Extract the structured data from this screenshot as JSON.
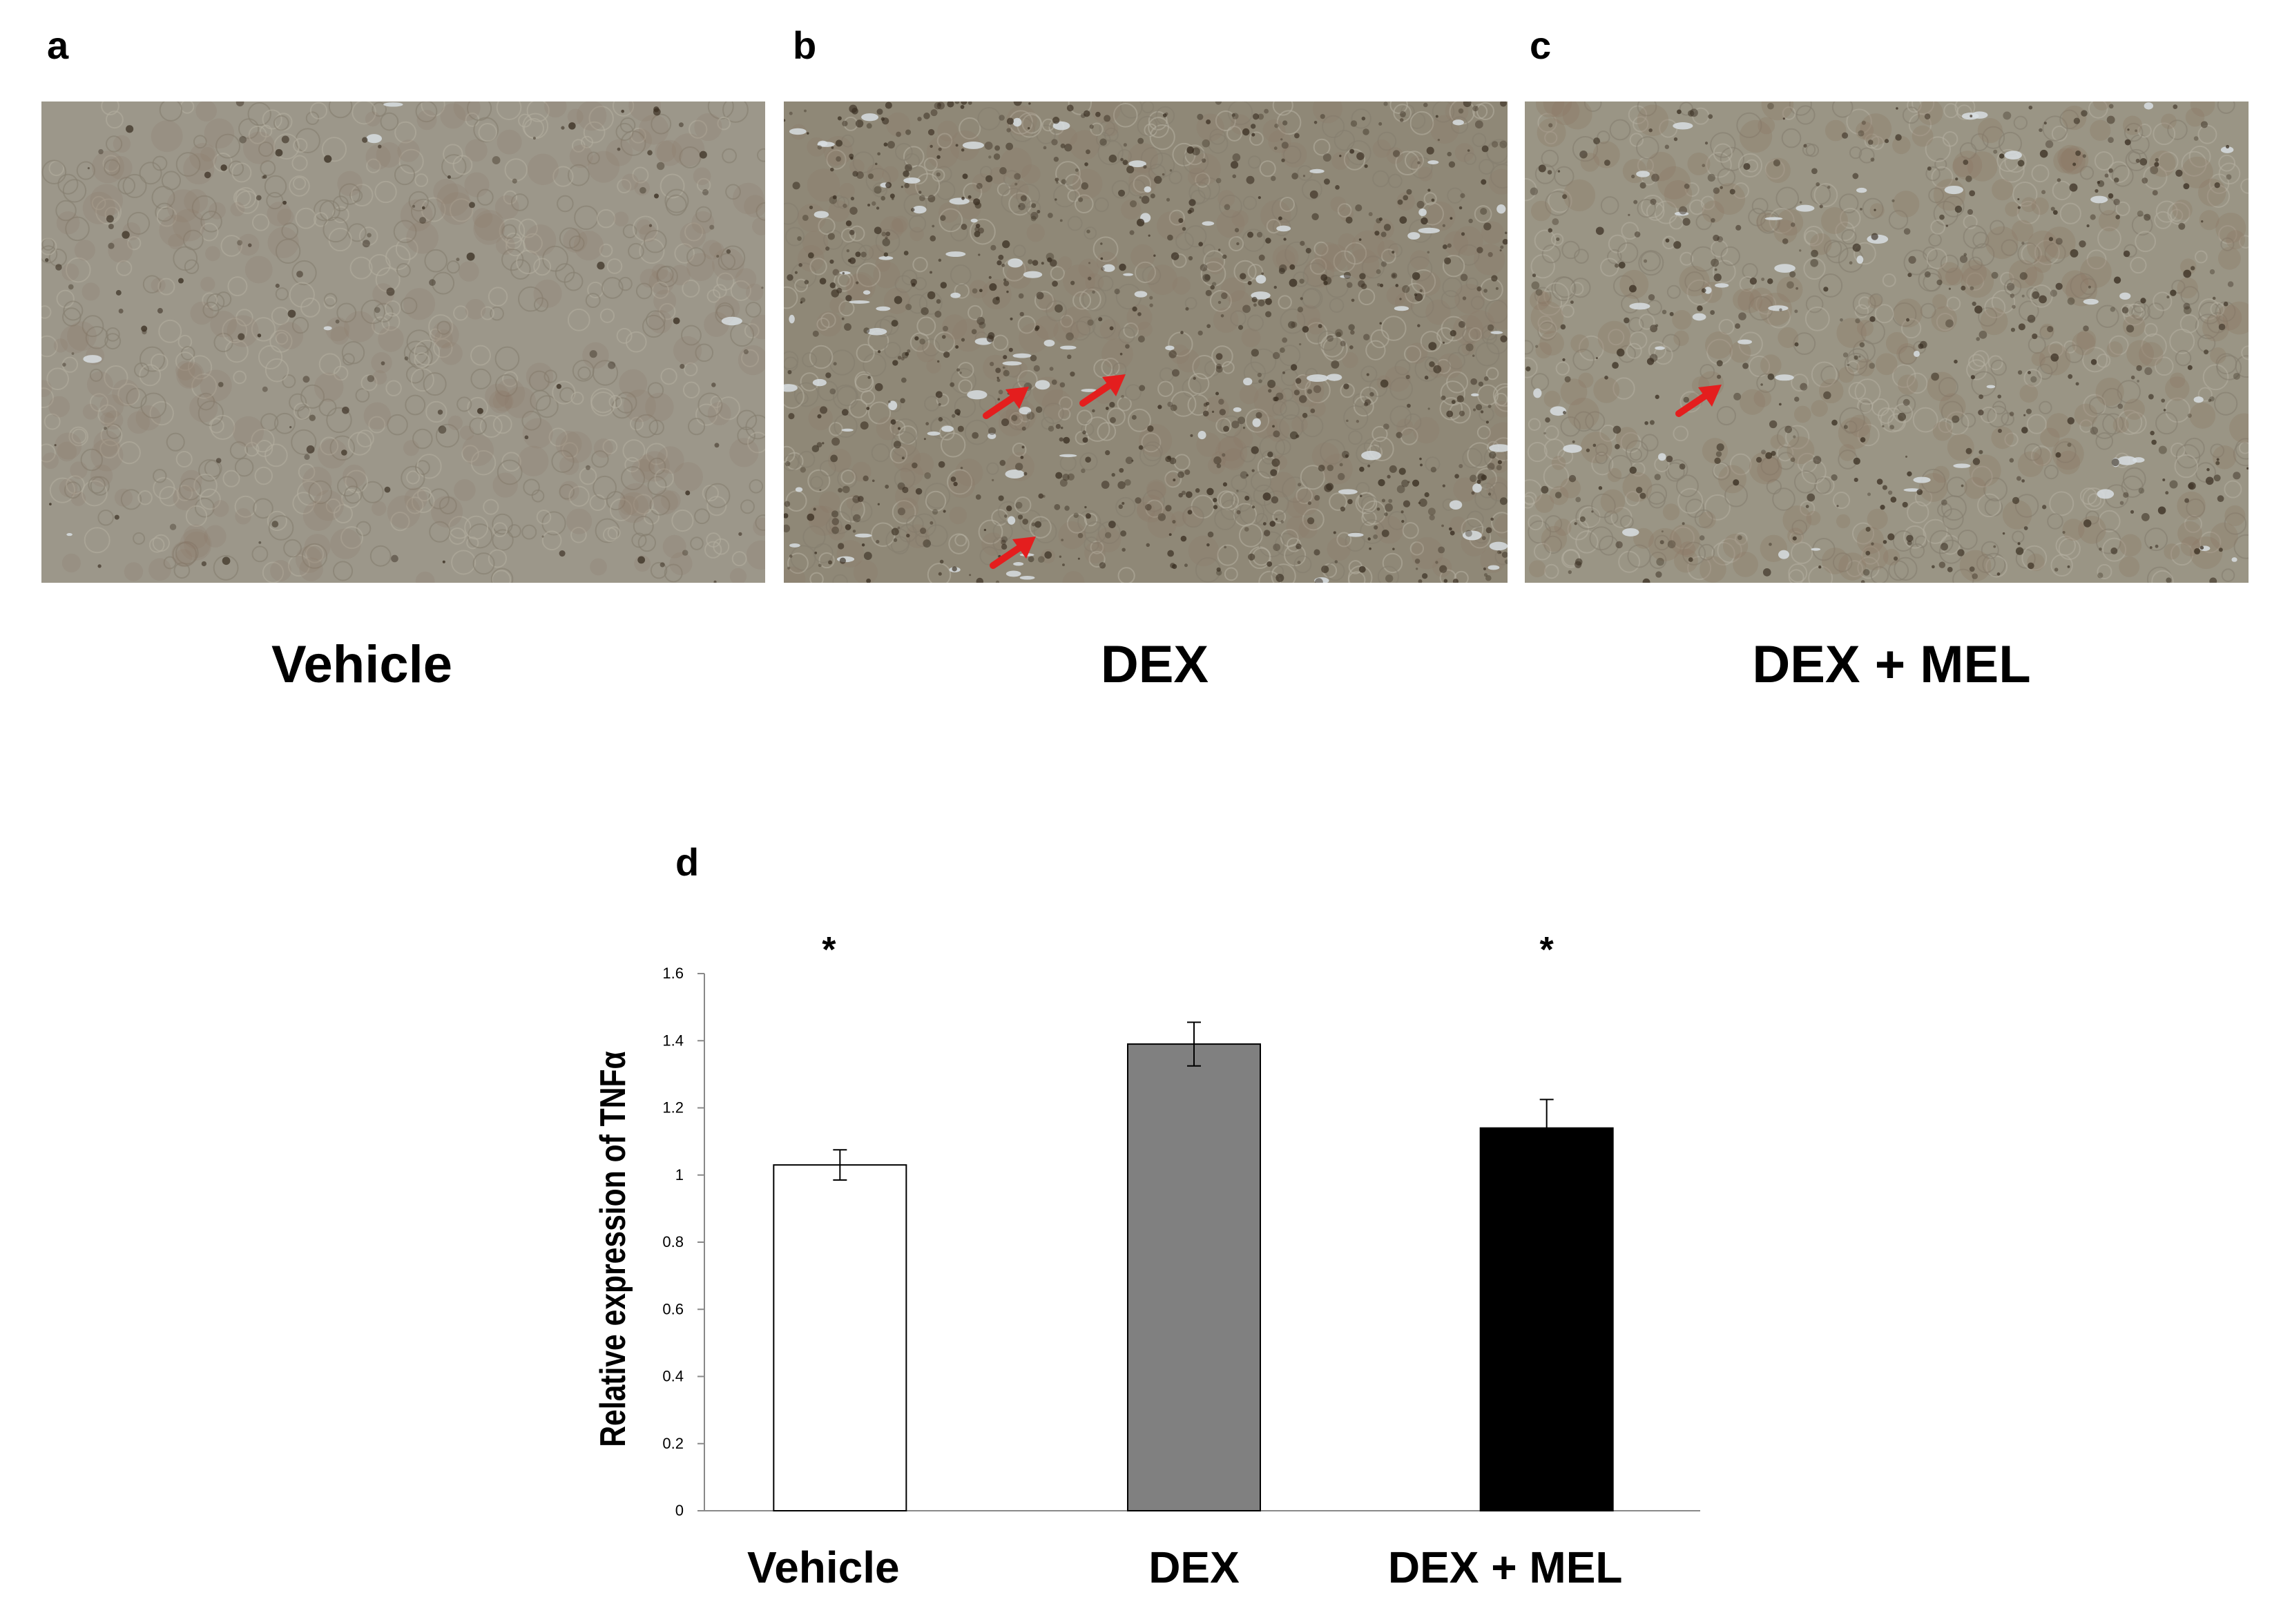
{
  "panels": [
    {
      "letter": "a",
      "label": "Vehicle",
      "arrows": 0
    },
    {
      "letter": "b",
      "label": "DEX",
      "arrows": 3
    },
    {
      "letter": "c",
      "label": "DEX + MEL",
      "arrows": 1
    }
  ],
  "colors": {
    "tissue_vehicle": "#9c978a",
    "tissue_dex": "#8f8877",
    "tissue_dexmel": "#9a9585",
    "stain": "#3a2f22",
    "arrow": "#e41e1e",
    "bar_vehicle": "#ffffff",
    "bar_dex": "#808080",
    "bar_dexmel": "#000000"
  },
  "chart_panel_letter": "d",
  "chart_data": {
    "type": "bar",
    "categories": [
      "Vehicle",
      "DEX",
      "DEX + MEL"
    ],
    "values": [
      1.03,
      1.39,
      1.14
    ],
    "errors": [
      0.045,
      0.065,
      0.085
    ],
    "significance": [
      "*",
      "",
      "*"
    ],
    "ylabel": "Relative expression of TNFα",
    "xlabel": "",
    "ylim": [
      0,
      1.6
    ],
    "yticks": [
      "0",
      "0.2",
      "0.4",
      "0.6",
      "0.8",
      "1",
      "1.2",
      "1.4",
      "1.6"
    ],
    "grid": false
  }
}
